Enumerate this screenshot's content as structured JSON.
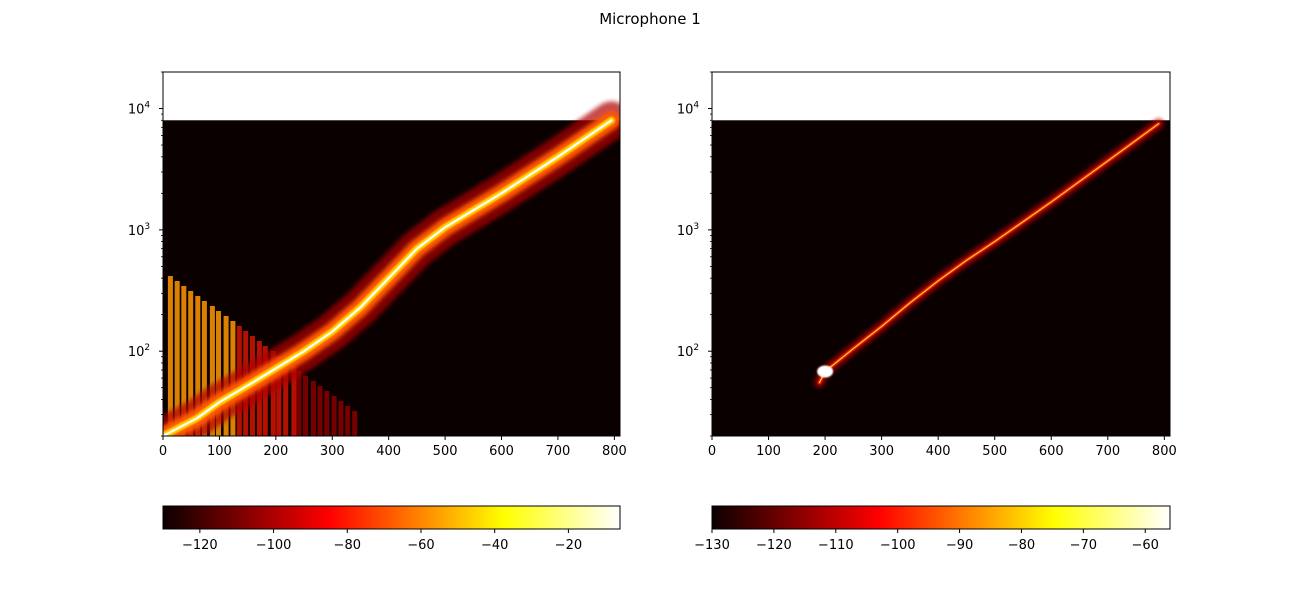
{
  "figure": {
    "title": "Microphone 1"
  },
  "chart_data": [
    {
      "type": "heatmap",
      "title": "",
      "xlabel": "",
      "ylabel": "",
      "xlim": [
        0,
        810
      ],
      "ylim": [
        20,
        20000
      ],
      "yscale": "log",
      "x_ticks": [
        0,
        100,
        200,
        300,
        400,
        500,
        600,
        700,
        800
      ],
      "x_tick_labels": [
        "0",
        "100",
        "200",
        "300",
        "400",
        "500",
        "600",
        "700",
        "800"
      ],
      "y_ticks": [
        100,
        1000,
        10000
      ],
      "y_tick_labels": [
        [
          "10",
          "2"
        ],
        [
          "10",
          "3"
        ],
        [
          "10",
          "4"
        ]
      ],
      "data_extent": {
        "x": [
          0,
          810
        ],
        "y_max": 8000
      },
      "colormap": "hot",
      "colorbar": {
        "orientation": "horizontal",
        "range": [
          -130,
          -6
        ],
        "ticks": [
          -120,
          -100,
          -80,
          -60,
          -40,
          -20
        ],
        "tick_labels": [
          "−120",
          "−100",
          "−80",
          "−60",
          "−40",
          "−20"
        ]
      },
      "ridge": [
        [
          0,
          20
        ],
        [
          60,
          28
        ],
        [
          100,
          38
        ],
        [
          150,
          52
        ],
        [
          200,
          72
        ],
        [
          250,
          100
        ],
        [
          300,
          145
        ],
        [
          350,
          230
        ],
        [
          400,
          400
        ],
        [
          450,
          700
        ],
        [
          500,
          1050
        ],
        [
          600,
          2000
        ],
        [
          700,
          4000
        ],
        [
          795,
          8000
        ]
      ]
    },
    {
      "type": "heatmap",
      "title": "",
      "xlabel": "",
      "ylabel": "",
      "xlim": [
        0,
        810
      ],
      "ylim": [
        20,
        20000
      ],
      "yscale": "log",
      "x_ticks": [
        0,
        100,
        200,
        300,
        400,
        500,
        600,
        700,
        800
      ],
      "x_tick_labels": [
        "0",
        "100",
        "200",
        "300",
        "400",
        "500",
        "600",
        "700",
        "800"
      ],
      "y_ticks": [
        100,
        1000,
        10000
      ],
      "y_tick_labels": [
        [
          "10",
          "2"
        ],
        [
          "10",
          "3"
        ],
        [
          "10",
          "4"
        ]
      ],
      "data_extent": {
        "x": [
          0,
          810
        ],
        "y_max": 8000
      },
      "colormap": "hot",
      "colorbar": {
        "orientation": "horizontal",
        "range": [
          -130,
          -56
        ],
        "ticks": [
          -130,
          -120,
          -110,
          -100,
          -90,
          -80,
          -70,
          -60
        ],
        "tick_labels": [
          "−130",
          "−120",
          "−110",
          "−100",
          "−90",
          "−80",
          "−70",
          "−60"
        ]
      },
      "ridge": [
        [
          190,
          55
        ],
        [
          200,
          68
        ],
        [
          250,
          105
        ],
        [
          300,
          160
        ],
        [
          350,
          250
        ],
        [
          400,
          380
        ],
        [
          450,
          560
        ],
        [
          500,
          800
        ],
        [
          600,
          1700
        ],
        [
          700,
          3700
        ],
        [
          790,
          7500
        ]
      ]
    }
  ]
}
